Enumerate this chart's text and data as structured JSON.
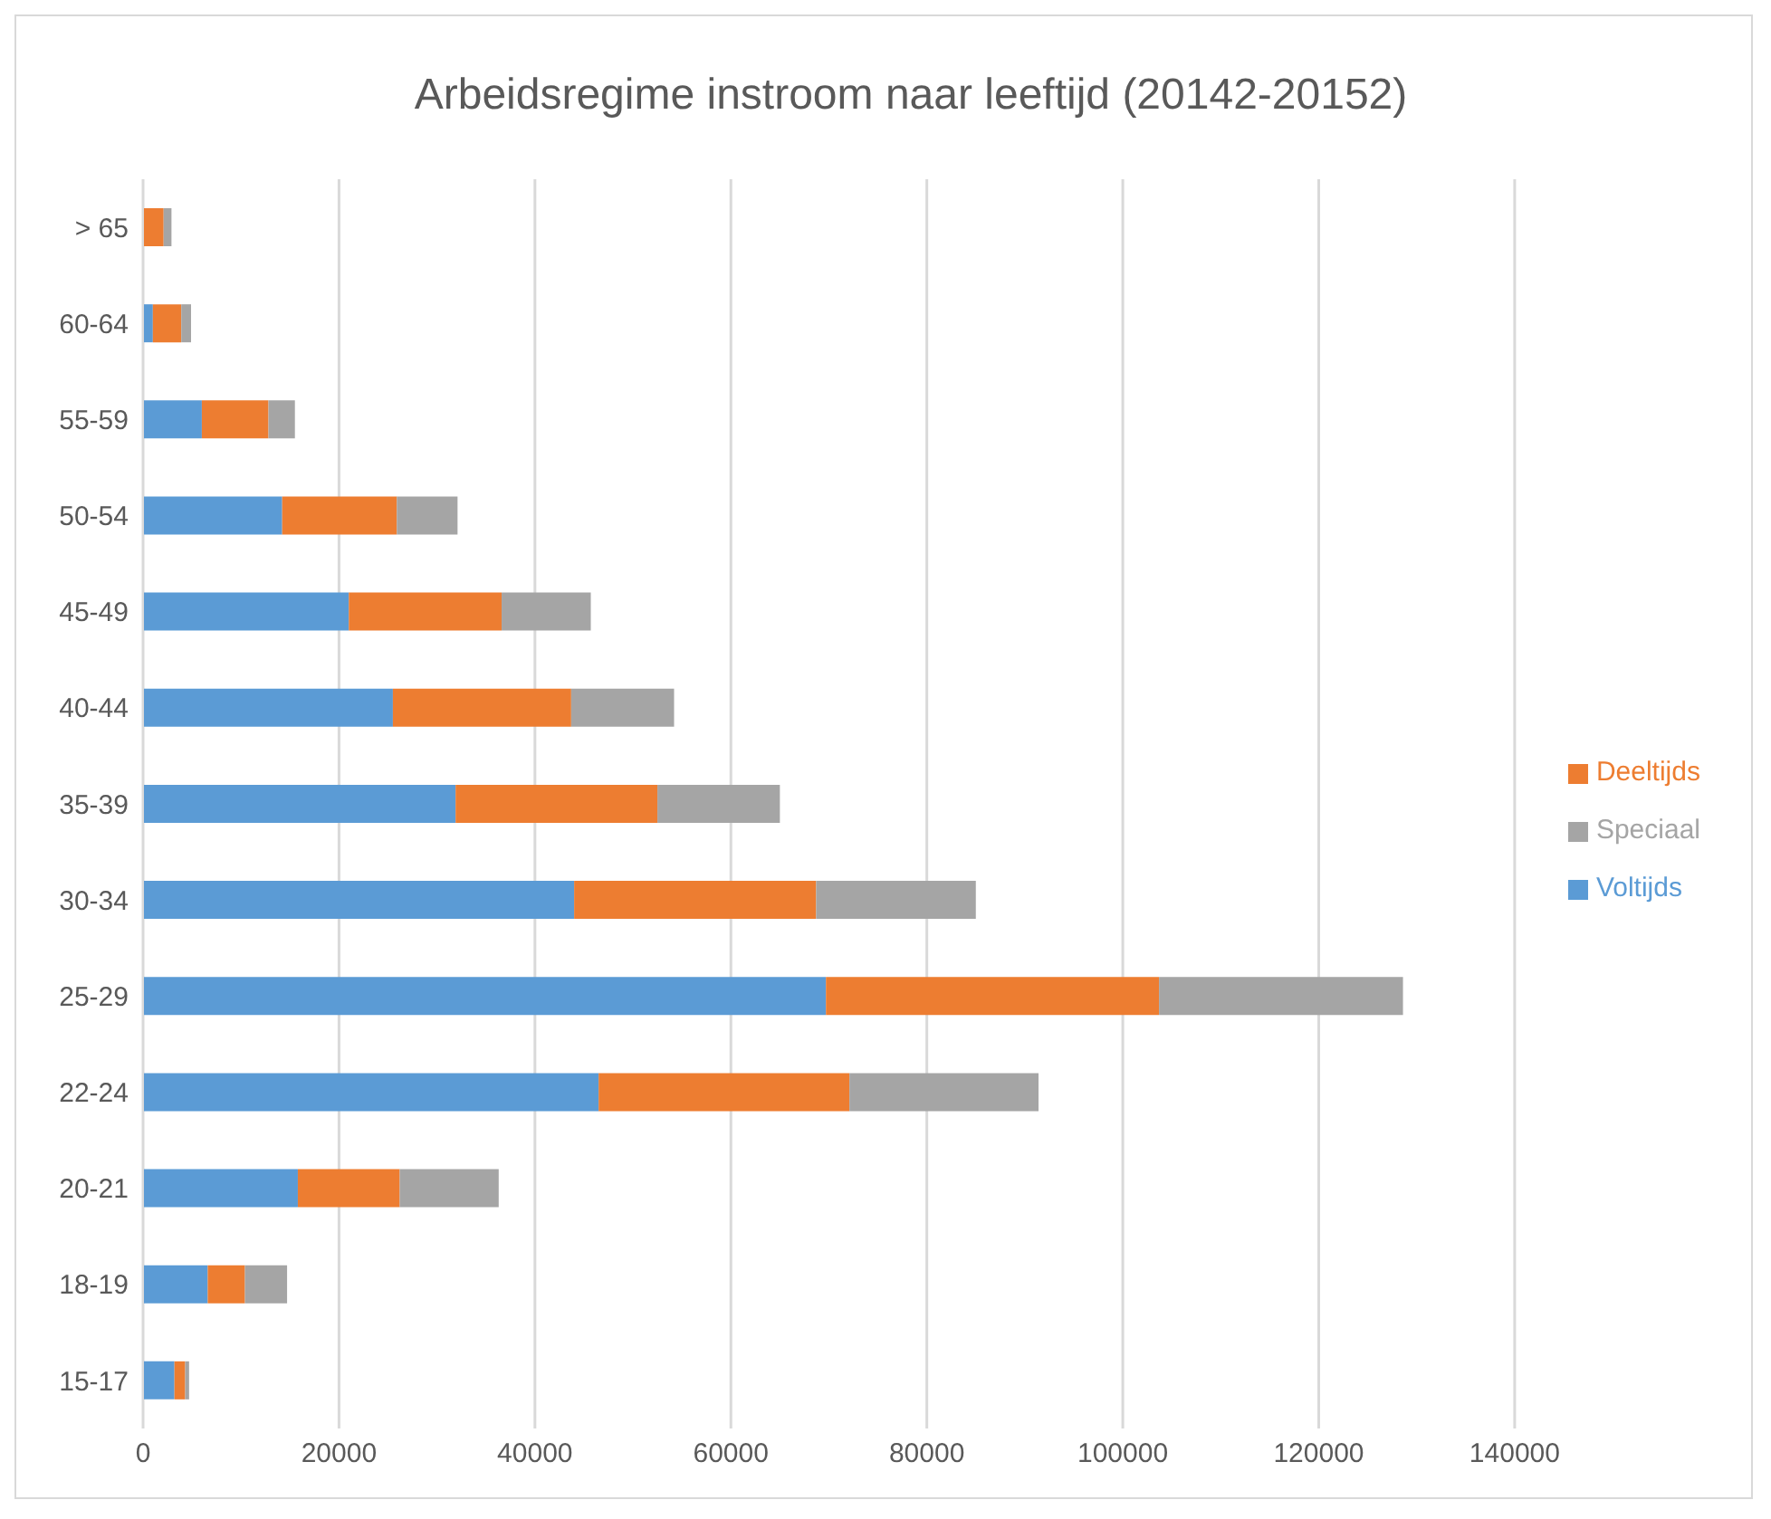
{
  "chart_data": {
    "type": "bar",
    "orientation": "horizontal",
    "stacked": true,
    "title": "Arbeidsregime instroom naar leeftijd  (20142-20152)",
    "categories": [
      "> 65",
      "60-64",
      "55-59",
      "50-54",
      "45-49",
      "40-44",
      "35-39",
      "30-34",
      "25-29",
      "22-24",
      "20-21",
      "18-19",
      "15-17"
    ],
    "series": [
      {
        "name": "Voltijds",
        "color": "#5b9bd5",
        "values": [
          0,
          1000,
          6000,
          14200,
          21000,
          25500,
          31900,
          44000,
          69700,
          46500,
          15800,
          6600,
          3200
        ]
      },
      {
        "name": "Deeltijds",
        "color": "#ed7d31",
        "values": [
          2100,
          2900,
          6800,
          11700,
          15600,
          18200,
          20600,
          24700,
          34000,
          25600,
          10400,
          3800,
          1100
        ]
      },
      {
        "name": "Speciaal",
        "color": "#a5a5a5",
        "values": [
          800,
          1000,
          2700,
          6200,
          9100,
          10500,
          12500,
          16300,
          24900,
          19300,
          10100,
          4300,
          400
        ]
      }
    ],
    "xlim": [
      0,
      140000
    ],
    "xticks": [
      0,
      20000,
      40000,
      60000,
      80000,
      100000,
      120000,
      140000
    ],
    "grid": "x",
    "legend": "right"
  }
}
